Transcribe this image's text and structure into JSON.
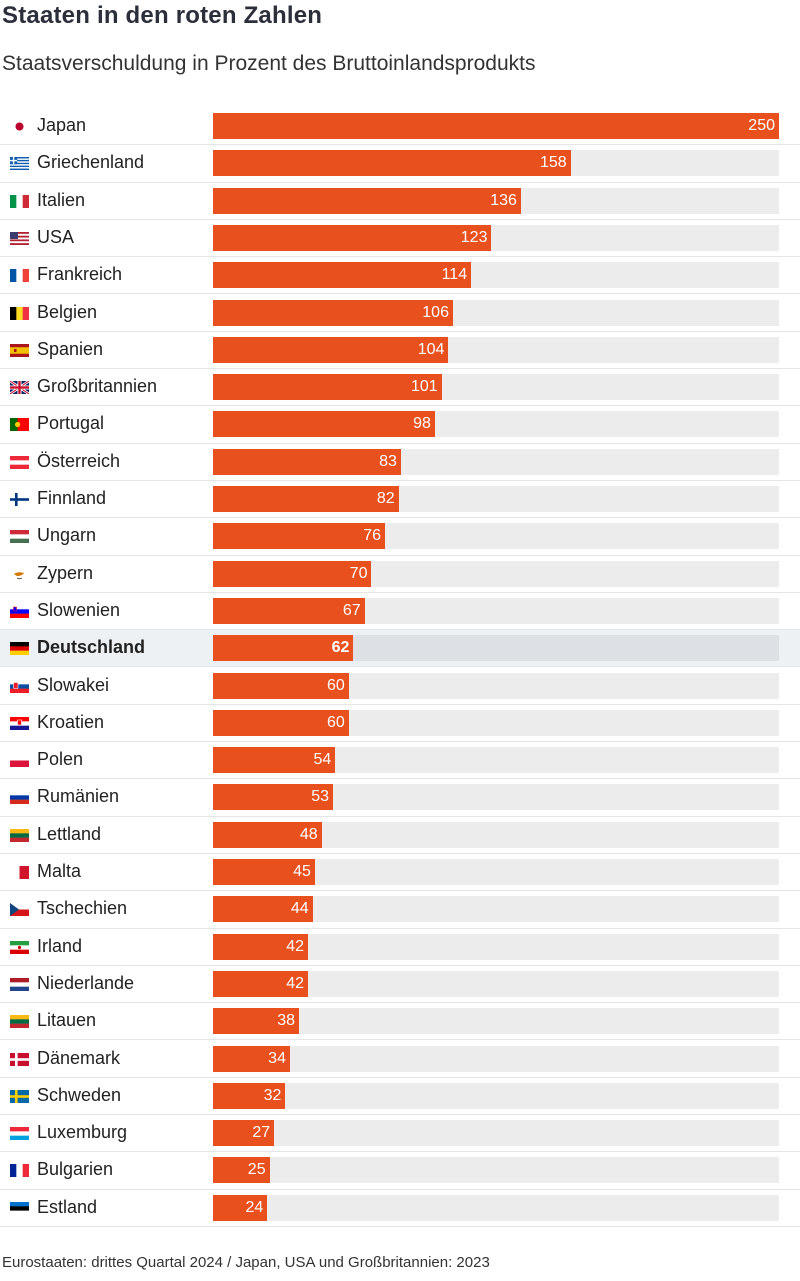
{
  "header": {
    "title": "Staaten in den roten Zahlen",
    "subtitle": "Staatsverschuldung in Prozent des Bruttoinlandsprodukts"
  },
  "footnote": "Eurostaaten: drittes Quartal 2024 / Japan, USA und Großbritannien: 2023",
  "colors": {
    "bar": "#e8501e",
    "track": "#ececec",
    "highlight_row": "#eef1f4",
    "value_text": "#ffffff"
  },
  "chart_data": {
    "type": "bar",
    "orientation": "horizontal",
    "title": "Staaten in den roten Zahlen",
    "subtitle": "Staatsverschuldung in Prozent des Bruttoinlandsprodukts",
    "xlim": [
      0,
      250
    ],
    "grid": false,
    "highlight": "Deutschland",
    "categories": [
      "Japan",
      "Griechenland",
      "Italien",
      "USA",
      "Frankreich",
      "Belgien",
      "Spanien",
      "Großbritannien",
      "Portugal",
      "Österreich",
      "Finnland",
      "Ungarn",
      "Zypern",
      "Slowenien",
      "Deutschland",
      "Slowakei",
      "Kroatien",
      "Polen",
      "Rumänien",
      "Lettland",
      "Malta",
      "Tschechien",
      "Irland",
      "Niederlande",
      "Litauen",
      "Dänemark",
      "Schweden",
      "Luxemburg",
      "Bulgarien",
      "Estland"
    ],
    "values": [
      250,
      158,
      136,
      123,
      114,
      106,
      104,
      101,
      98,
      83,
      82,
      76,
      70,
      67,
      62,
      60,
      60,
      54,
      53,
      48,
      45,
      44,
      42,
      42,
      38,
      34,
      32,
      27,
      25,
      24
    ],
    "flags": [
      "japan-flag",
      "greece-flag",
      "italy-flag",
      "usa-flag",
      "france-flag",
      "belgium-flag",
      "spain-flag",
      "uk-flag",
      "portugal-flag",
      "austria-flag",
      "finland-flag",
      "hungary-flag",
      "cyprus-flag",
      "slovenia-flag",
      "germany-flag",
      "slovakia-flag",
      "croatia-flag",
      "poland-flag",
      "romania-flag",
      "latvia-flag",
      "malta-flag",
      "czechia-flag",
      "ireland-flag",
      "netherlands-flag",
      "lithuania-flag",
      "denmark-flag",
      "sweden-flag",
      "luxembourg-flag",
      "bulgaria-flag",
      "estonia-flag"
    ]
  }
}
